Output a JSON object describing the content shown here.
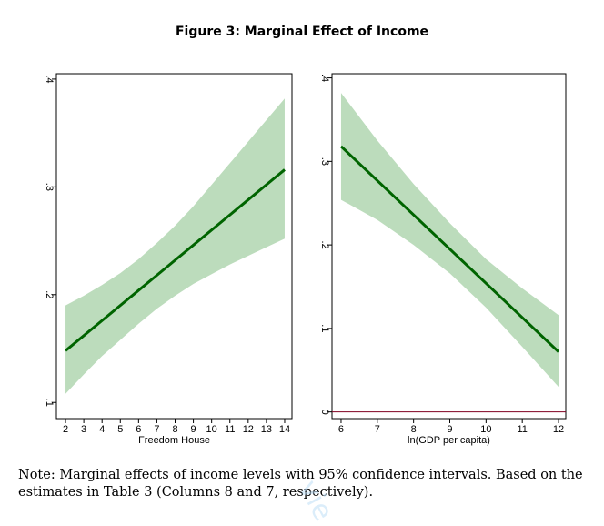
{
  "figure": {
    "title": "Figure 3: Marginal Effect of Income",
    "note": "Note: Marginal effects of income levels with 95% confidence intervals. Based on the estimates in Table 3 (Columns 8 and 7, respectively).",
    "watermark": "vie"
  },
  "colors": {
    "line": "#006400",
    "band": "#bcdcbc",
    "zero_line": "#800020",
    "frame": "#000000"
  },
  "chart_data": [
    {
      "type": "line",
      "xlabel": "Freedom House",
      "ylabel": "",
      "xlim": [
        1.5,
        14.4
      ],
      "ylim": [
        0.085,
        0.405
      ],
      "xticks": [
        2,
        3,
        4,
        5,
        6,
        7,
        8,
        9,
        10,
        11,
        12,
        13,
        14
      ],
      "yticks": [
        0.1,
        0.2,
        0.3,
        0.4
      ],
      "ytick_labels": [
        ".1",
        ".2",
        ".3",
        ".4"
      ],
      "series": [
        {
          "x": [
            2,
            3,
            4,
            5,
            6,
            7,
            8,
            9,
            10,
            11,
            12,
            13,
            14
          ],
          "y": [
            0.148,
            0.162,
            0.176,
            0.19,
            0.204,
            0.218,
            0.232,
            0.246,
            0.26,
            0.274,
            0.288,
            0.302,
            0.316
          ],
          "ci_lower": [
            0.108,
            0.126,
            0.143,
            0.158,
            0.173,
            0.187,
            0.199,
            0.21,
            0.219,
            0.228,
            0.236,
            0.244,
            0.252
          ],
          "ci_upper": [
            0.19,
            0.199,
            0.209,
            0.22,
            0.233,
            0.248,
            0.264,
            0.282,
            0.302,
            0.322,
            0.342,
            0.362,
            0.382
          ]
        }
      ],
      "grid": false
    },
    {
      "type": "line",
      "xlabel": "ln(GDP per capita)",
      "ylabel": "",
      "xlim": [
        5.75,
        12.2
      ],
      "ylim": [
        -0.008,
        0.405
      ],
      "xticks": [
        6,
        7,
        8,
        9,
        10,
        11,
        12
      ],
      "yticks": [
        0,
        0.1,
        0.2,
        0.3,
        0.4
      ],
      "ytick_labels": [
        "0",
        ".1",
        ".2",
        ".3",
        ".4"
      ],
      "reference_line_y": 0,
      "series": [
        {
          "x": [
            6,
            7,
            8,
            9,
            10,
            11,
            12
          ],
          "y": [
            0.318,
            0.277,
            0.236,
            0.195,
            0.154,
            0.113,
            0.072
          ],
          "ci_lower": [
            0.254,
            0.23,
            0.2,
            0.166,
            0.125,
            0.078,
            0.03
          ],
          "ci_upper": [
            0.382,
            0.325,
            0.273,
            0.226,
            0.183,
            0.148,
            0.116
          ]
        }
      ],
      "grid": false
    }
  ]
}
